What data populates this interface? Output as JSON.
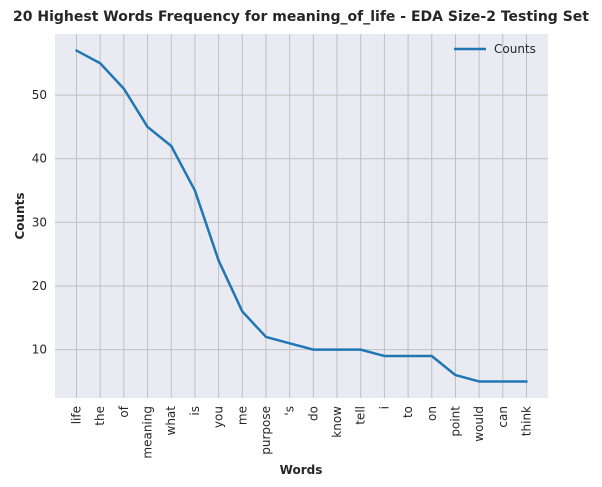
{
  "chart_data": {
    "type": "line",
    "title": "20 Highest Words Frequency for meaning_of_life - EDA Size-2 Testing Set",
    "xlabel": "Words",
    "ylabel": "Counts",
    "categories": [
      "life",
      "the",
      "of",
      "meaning",
      "what",
      "is",
      "you",
      "me",
      "purpose",
      "'s",
      "do",
      "know",
      "tell",
      "i",
      "to",
      "on",
      "point",
      "would",
      "can",
      "think"
    ],
    "series": [
      {
        "name": "Counts",
        "values": [
          57,
          55,
          51,
          45,
          42,
          35,
          24,
          16,
          12,
          11,
          10,
          10,
          10,
          9,
          9,
          9,
          6,
          5,
          5,
          5
        ],
        "color": "#1f77b4"
      }
    ],
    "ylim": [
      2.4,
      59.6
    ],
    "yticks": [
      10,
      20,
      30,
      40,
      50
    ],
    "grid": true,
    "legend_position": "top-right",
    "background_color": "#eaeaf2",
    "grid_color": "#c0c0c0"
  }
}
